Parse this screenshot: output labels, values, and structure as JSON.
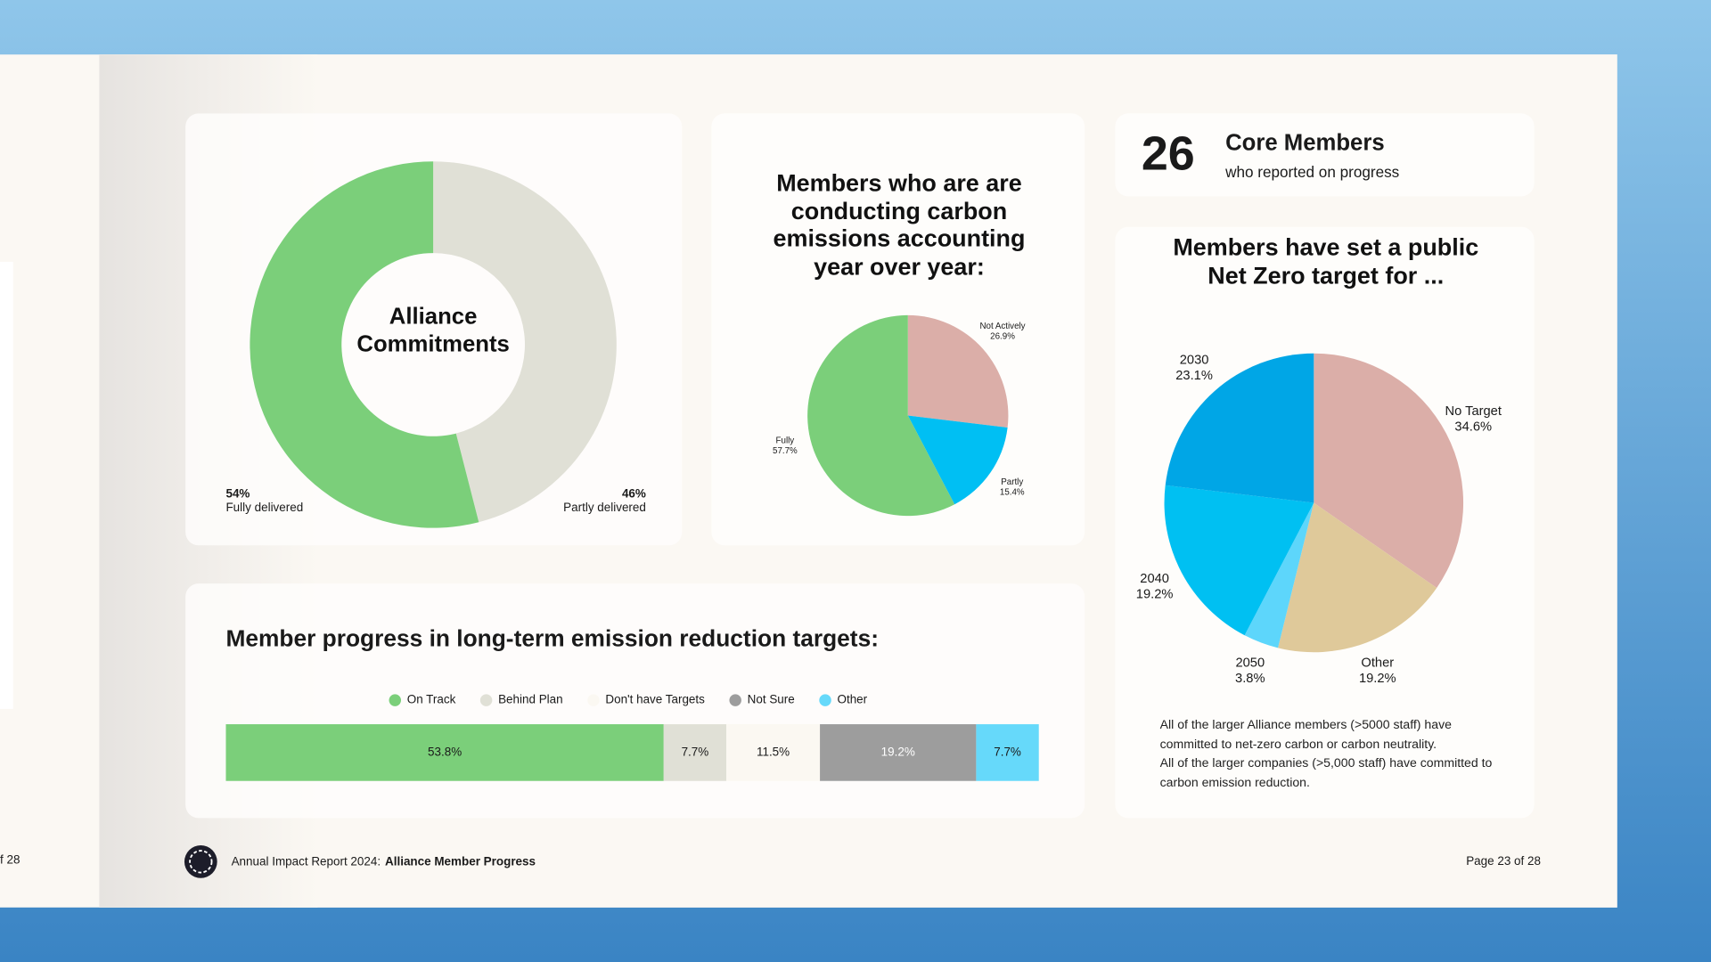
{
  "slide": {
    "previous_page": "f 28",
    "stat": {
      "number": 26,
      "title": "Core Members",
      "subtitle": "who reported on progress"
    },
    "note": [
      "All of the larger Alliance members (>5000 staff) have committed to net-zero carbon or carbon neutrality.",
      "All of the larger companies (>5,000 staff) have committed to carbon emission reduction."
    ],
    "footer": {
      "report": "Annual Impact Report 2024:",
      "section": "Alliance Member Progress",
      "page": "Page 23 of 28"
    }
  },
  "chart_data": [
    {
      "type": "donut",
      "title": "Alliance Commitments",
      "categories": [
        "Partly delivered",
        "Fully delivered"
      ],
      "values": [
        46,
        54
      ],
      "value_labels": [
        "46%",
        "54%"
      ],
      "colors": [
        "#e0e0d6",
        "#7bcf7a"
      ]
    },
    {
      "type": "pie",
      "title": "Members who are are conducting carbon emissions accounting year over year:",
      "categories": [
        "Not Actively",
        "Partly",
        "Fully"
      ],
      "values": [
        26.9,
        15.4,
        57.7
      ],
      "value_labels": [
        "26.9%",
        "15.4%",
        "57.7%"
      ],
      "colors": [
        "#dbaea8",
        "#00bff3",
        "#7bcf7a"
      ]
    },
    {
      "type": "pie",
      "title": "Members have set a public Net Zero target for ...",
      "categories": [
        "No Target",
        "Other",
        "2050",
        "2040",
        "2030"
      ],
      "values": [
        34.6,
        19.2,
        3.8,
        19.2,
        23.1
      ],
      "value_labels": [
        "34.6%",
        "19.2%",
        "3.8%",
        "19.2%",
        "23.1%"
      ],
      "colors": [
        "#dbaea8",
        "#dfc99a",
        "#5dd6fb",
        "#00c0f2",
        "#00a6e6"
      ]
    },
    {
      "type": "stacked-bar",
      "title": "Member progress in long-term emission reduction targets:",
      "series": [
        {
          "name": "On Track",
          "color": "#7bcf7a",
          "values": [
            53.8
          ],
          "value_labels": [
            "53.8%"
          ]
        },
        {
          "name": "Behind Plan",
          "color": "#e0e0d6",
          "values": [
            7.7
          ],
          "value_labels": [
            "7.7%"
          ]
        },
        {
          "name": "Don't have Targets",
          "color": "#fbf8f2",
          "values": [
            11.5
          ],
          "value_labels": [
            "11.5%"
          ]
        },
        {
          "name": "Not Sure",
          "color": "#9d9d9d",
          "values": [
            19.2
          ],
          "value_labels": [
            "19.2%"
          ]
        },
        {
          "name": "Other",
          "color": "#66d9fa",
          "values": [
            7.7
          ],
          "value_labels": [
            "7.7%"
          ]
        }
      ]
    }
  ]
}
